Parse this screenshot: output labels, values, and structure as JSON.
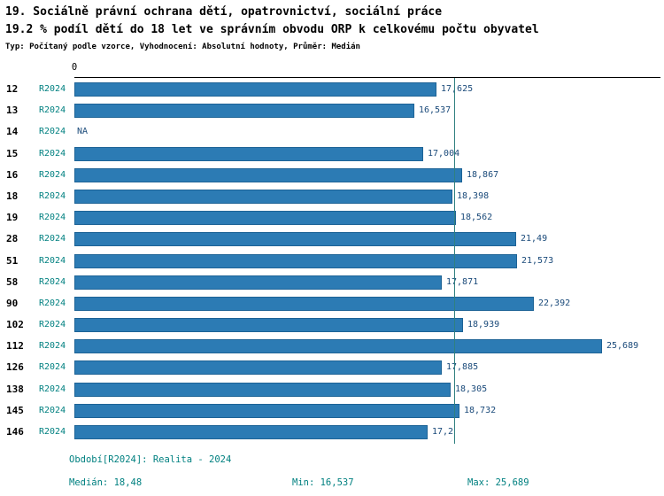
{
  "title_line1": "19. Sociálně právní ochrana dětí, opatrovnictví, sociální práce",
  "title_line2": "19.2 % podíl dětí do 18 let ve správním obvodu ORP k celkovému počtu obyvatel",
  "subtitle": "Typ: Počítaný podle vzorce, Vyhodnocení: Absolutní hodnoty, Průměr: Medián",
  "chart_data": {
    "type": "bar",
    "orientation": "horizontal",
    "axis_zero_label": "0",
    "series_label": "R2024",
    "categories": [
      "12",
      "13",
      "14",
      "15",
      "16",
      "18",
      "19",
      "28",
      "51",
      "58",
      "90",
      "102",
      "112",
      "126",
      "138",
      "145",
      "146"
    ],
    "values": [
      17.625,
      16.537,
      null,
      17.004,
      18.867,
      18.398,
      18.562,
      21.49,
      21.573,
      17.871,
      22.392,
      18.939,
      25.689,
      17.885,
      18.305,
      18.732,
      17.2
    ],
    "value_labels": [
      "17,625",
      "16,537",
      "NA",
      "17,004",
      "18,867",
      "18,398",
      "18,562",
      "21,49",
      "21,573",
      "17,871",
      "22,392",
      "18,939",
      "25,689",
      "17,885",
      "18,305",
      "18,732",
      "17,2"
    ],
    "xlim": [
      0,
      28.5
    ],
    "median": 18.48,
    "min": 16.537,
    "max": 25.689,
    "grid": false,
    "legend": "none"
  },
  "footer": {
    "period": "Období[R2024]: Realita - 2024",
    "median": "Medián: 18,48",
    "min": "Min: 16,537",
    "max": "Max: 25,689"
  },
  "colors": {
    "bar": "#2c7bb4",
    "bar_border": "#1d6396",
    "accent_teal": "#008080",
    "value_label": "#1a4a7a",
    "median_line": "#2f8080",
    "axis": "#000000"
  }
}
